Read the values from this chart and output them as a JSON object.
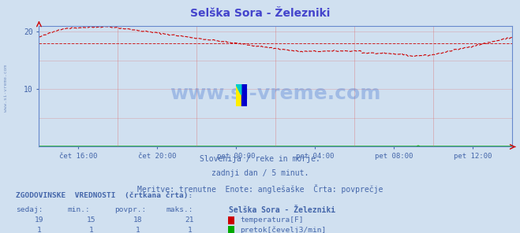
{
  "title": "Selška Sora - Železniki",
  "title_color": "#4444cc",
  "bg_color": "#d0e0f0",
  "plot_bg_color": "#d0e0f0",
  "text_color": "#4466aa",
  "watermark": "www.si-vreme.com",
  "subtitle1": "Slovenija / reke in morje.",
  "subtitle2": "zadnji dan / 5 minut.",
  "subtitle3": "Meritve: trenutne  Enote: anglešaške  Črta: povprečje",
  "xlabel_times": [
    "čet 16:00",
    "čet 20:00",
    "pet 00:00",
    "pet 04:00",
    "pet 08:00",
    "pet 12:00"
  ],
  "ylim": [
    0,
    21
  ],
  "avg_temp": 18,
  "temp_color": "#cc0000",
  "flow_color": "#00aa00",
  "legend_title": "Selška Sora - Železniki",
  "stats_header": "ZGODOVINSKE  VREDNOSTI  (črtkana črta):",
  "cols": [
    "sedaj:",
    "min.:",
    "povpr.:",
    "maks.:"
  ],
  "row_temp": [
    "19",
    "15",
    "18",
    "21",
    "temperatura[F]"
  ],
  "row_flow": [
    "1",
    "1",
    "1",
    "1",
    "pretok[čevelj3/min]"
  ],
  "watermark_color": "#3366cc",
  "watermark_alpha": 0.3,
  "grid_color_h": "#dd6666",
  "grid_color_v": "#dd6666",
  "axis_color": "#6688cc",
  "arrow_color": "#cc0000",
  "left_label": "www.si-vreme.com"
}
